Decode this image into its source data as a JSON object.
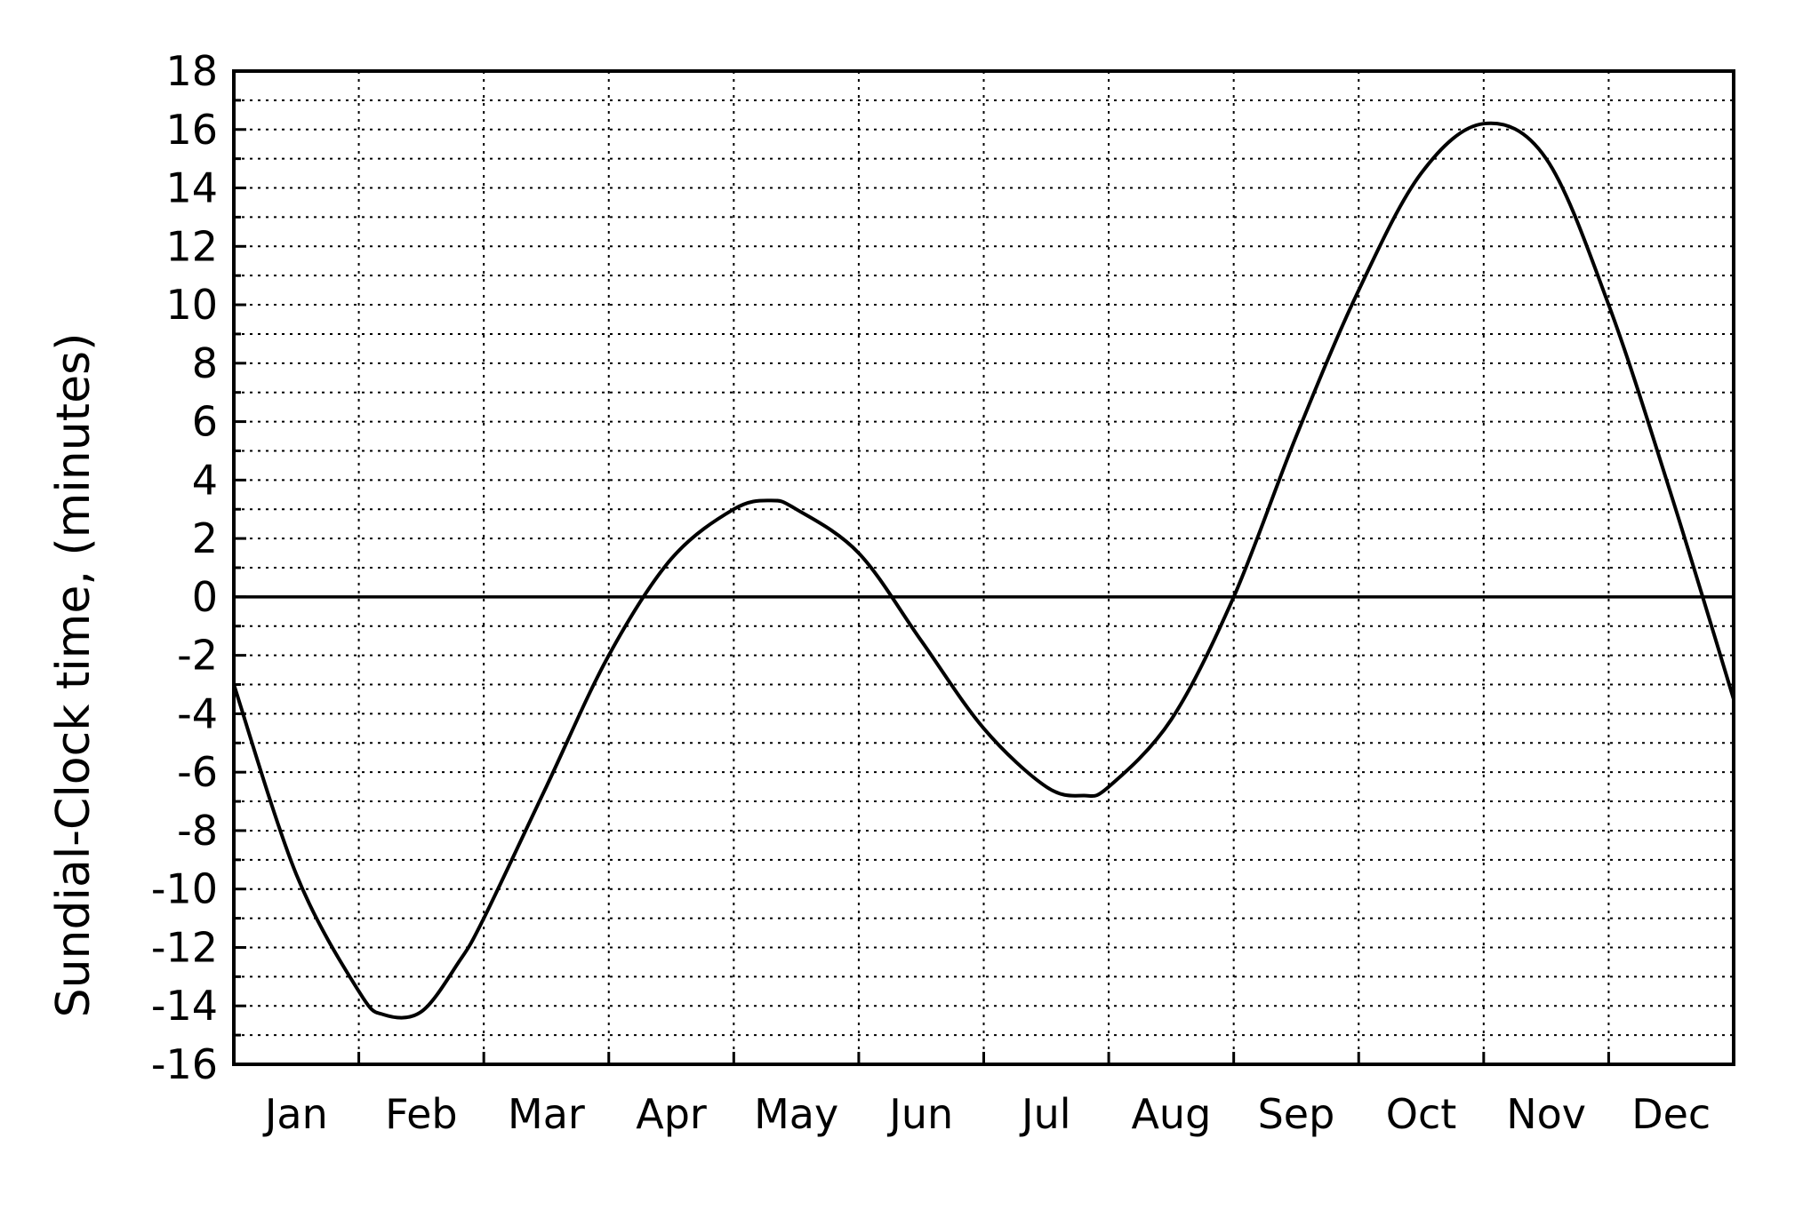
{
  "chart_data": {
    "type": "line",
    "title": "",
    "xlabel": "",
    "ylabel": "Sundial-Clock time, (minutes)",
    "ylim": [
      -16,
      18
    ],
    "yticks": [
      18,
      16,
      14,
      12,
      10,
      8,
      6,
      4,
      2,
      0,
      -2,
      -4,
      -6,
      -8,
      -10,
      -12,
      -14,
      -16
    ],
    "xlim": [
      0,
      12
    ],
    "categories": [
      "Jan",
      "Feb",
      "Mar",
      "Apr",
      "May",
      "Jun",
      "Jul",
      "Aug",
      "Sep",
      "Oct",
      "Nov",
      "Dec"
    ],
    "grid": true,
    "reference_line": 0,
    "series": [
      {
        "name": "",
        "x": [
          0,
          0.5,
          1,
          1.2,
          1.5,
          1.8,
          2,
          2.5,
          3,
          3.5,
          4,
          4.3,
          4.5,
          5,
          5.5,
          6,
          6.5,
          6.8,
          7,
          7.5,
          8,
          8.5,
          9,
          9.5,
          10,
          10.5,
          11,
          11.5,
          12
        ],
        "y": [
          -3,
          -9.5,
          -13.5,
          -14.3,
          -14.2,
          -12.5,
          -11,
          -6.5,
          -2,
          1.3,
          3,
          3.3,
          3,
          1.5,
          -1.5,
          -4.5,
          -6.5,
          -6.8,
          -6.5,
          -4.2,
          0,
          5.5,
          10.5,
          14.5,
          16.2,
          15,
          10,
          3.5,
          -3.5
        ]
      }
    ]
  }
}
